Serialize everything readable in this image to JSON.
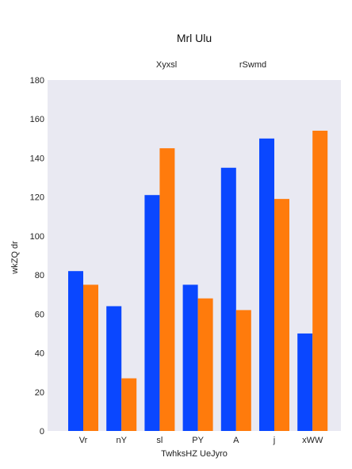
{
  "chart_data": {
    "type": "bar",
    "title": "Mrl Ulu",
    "xlabel": "TwhksHZ UeJyro",
    "ylabel": "wkZQ dr",
    "categories": [
      "Vr",
      "nY",
      "sl",
      "PY",
      "A",
      "j",
      "xWW"
    ],
    "series": [
      {
        "name": "Xyxsl",
        "color": "#0a47ff",
        "values": [
          82,
          64,
          121,
          75,
          135,
          150,
          50
        ]
      },
      {
        "name": "rSwmd",
        "color": "#ff7b0c",
        "values": [
          75,
          27,
          145,
          68,
          62,
          119,
          154
        ]
      }
    ],
    "ylim": [
      0,
      180
    ],
    "yticks": [
      0,
      20,
      40,
      60,
      80,
      100,
      120,
      140,
      160,
      180
    ],
    "grid": false,
    "legend_position": "top",
    "plot_background": "#e9e9f2"
  }
}
